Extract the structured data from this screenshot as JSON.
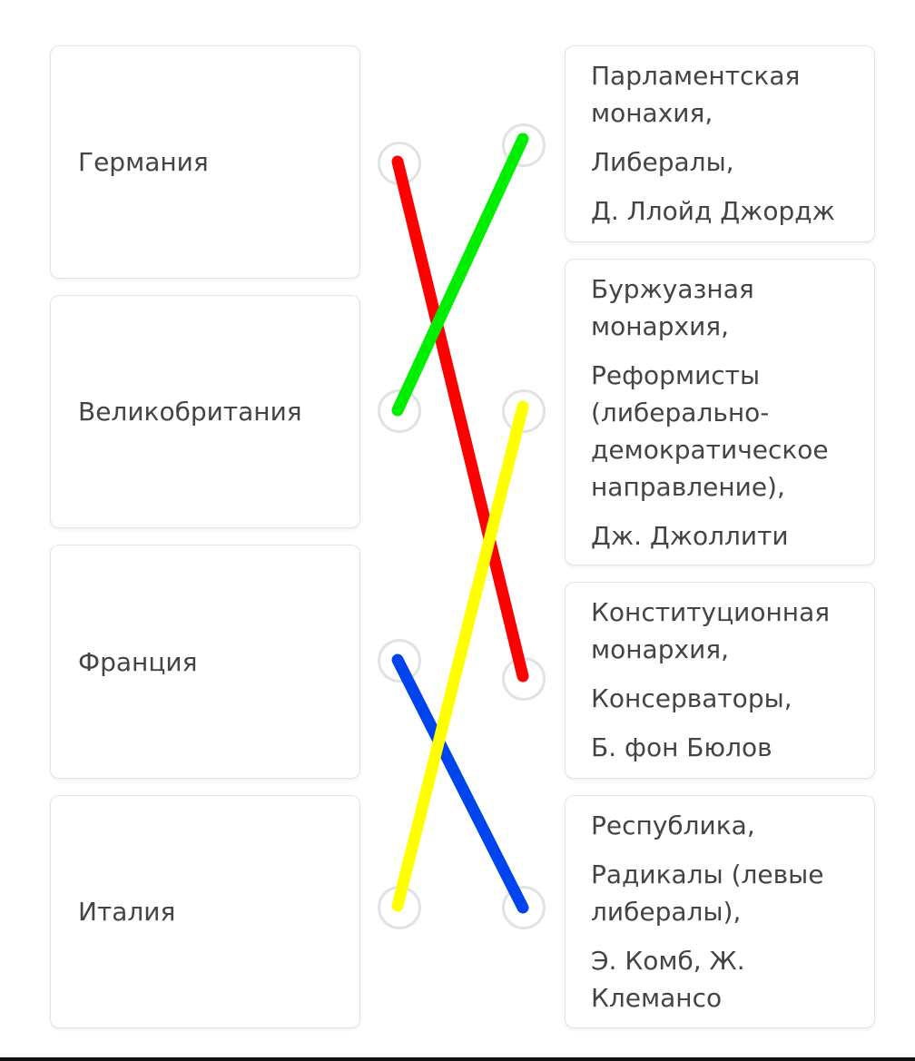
{
  "left_items": [
    {
      "label": "Германия"
    },
    {
      "label": "Великобритания"
    },
    {
      "label": "Франция"
    },
    {
      "label": "Италия"
    }
  ],
  "right_items": [
    {
      "lines": [
        "Парламентская монахия,",
        "Либералы,",
        "Д. Ллойд Джордж"
      ]
    },
    {
      "lines": [
        "Буржуазная монархия,",
        "Реформисты (либерально-демократическое направление),",
        "Дж. Джоллити"
      ]
    },
    {
      "lines": [
        "Конституционная монархия,",
        "Консерваторы,",
        "Б. фон Бюлов"
      ]
    },
    {
      "lines": [
        "Республика,",
        "Радикалы (левые либералы),",
        "Э. Комб, Ж. Клемансо"
      ]
    }
  ],
  "connections": [
    {
      "left": 0,
      "right": 2,
      "color": "#ff0000"
    },
    {
      "left": 1,
      "right": 0,
      "color": "#00ee00"
    },
    {
      "left": 2,
      "right": 3,
      "color": "#0044ee"
    },
    {
      "left": 3,
      "right": 1,
      "color": "#ffff00"
    }
  ]
}
